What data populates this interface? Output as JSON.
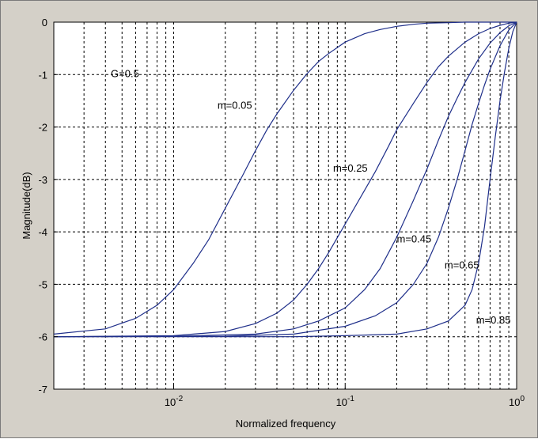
{
  "chart_data": {
    "type": "line",
    "xscale": "log",
    "xlim": [
      0.002,
      1
    ],
    "ylim": [
      -7,
      0
    ],
    "grid": true,
    "xlabel": "Normalized frequency",
    "ylabel": "Magnitude(dB)",
    "x_ticks": [
      {
        "base": "10",
        "exp": "-2",
        "value": 0.01
      },
      {
        "base": "10",
        "exp": "-1",
        "value": 0.1
      },
      {
        "base": "10",
        "exp": "0",
        "value": 1
      }
    ],
    "y_ticks": [
      0,
      -1,
      -2,
      -3,
      -4,
      -5,
      -6,
      -7
    ],
    "annotations": [
      {
        "text": "G=0.5",
        "x": 0.0043,
        "y": -1.05
      },
      {
        "text": "m=0.05",
        "x": 0.018,
        "y": -1.65
      },
      {
        "text": "m=0.25",
        "x": 0.085,
        "y": -2.85
      },
      {
        "text": "m=0.45",
        "x": 0.2,
        "y": -4.2
      },
      {
        "text": "m=0.65",
        "x": 0.38,
        "y": -4.7
      },
      {
        "text": "m=0.85",
        "x": 0.58,
        "y": -5.75
      }
    ],
    "series": [
      {
        "x": [
          0.002,
          0.004,
          0.006,
          0.008,
          0.01,
          0.013,
          0.016,
          0.02,
          0.025,
          0.03,
          0.035,
          0.04,
          0.05,
          0.06,
          0.07,
          0.08,
          0.1,
          0.13,
          0.16,
          0.2,
          0.25,
          0.3,
          0.4,
          0.5,
          0.7,
          1.0
        ],
        "y": [
          -5.95,
          -5.85,
          -5.65,
          -5.4,
          -5.1,
          -4.6,
          -4.15,
          -3.55,
          -2.95,
          -2.45,
          -2.05,
          -1.75,
          -1.3,
          -0.98,
          -0.75,
          -0.6,
          -0.38,
          -0.22,
          -0.14,
          -0.08,
          -0.04,
          -0.02,
          -0.01,
          0,
          0,
          0
        ]
      },
      {
        "x": [
          0.002,
          0.01,
          0.02,
          0.03,
          0.04,
          0.05,
          0.06,
          0.07,
          0.08,
          0.1,
          0.12,
          0.15,
          0.18,
          0.2,
          0.25,
          0.3,
          0.35,
          0.4,
          0.5,
          0.6,
          0.7,
          0.8,
          0.9,
          1.0
        ],
        "y": [
          -6.0,
          -5.98,
          -5.9,
          -5.75,
          -5.55,
          -5.3,
          -5.0,
          -4.7,
          -4.4,
          -3.85,
          -3.4,
          -2.85,
          -2.35,
          -2.05,
          -1.55,
          -1.15,
          -0.85,
          -0.65,
          -0.38,
          -0.22,
          -0.12,
          -0.06,
          -0.02,
          0
        ]
      },
      {
        "x": [
          0.002,
          0.01,
          0.03,
          0.05,
          0.07,
          0.1,
          0.13,
          0.16,
          0.2,
          0.25,
          0.3,
          0.35,
          0.4,
          0.45,
          0.5,
          0.6,
          0.7,
          0.8,
          0.9,
          1.0
        ],
        "y": [
          -6.0,
          -5.99,
          -5.95,
          -5.85,
          -5.7,
          -5.45,
          -5.1,
          -4.7,
          -4.1,
          -3.4,
          -2.8,
          -2.25,
          -1.8,
          -1.45,
          -1.15,
          -0.7,
          -0.4,
          -0.2,
          -0.07,
          0
        ]
      },
      {
        "x": [
          0.002,
          0.02,
          0.05,
          0.1,
          0.15,
          0.2,
          0.25,
          0.3,
          0.35,
          0.4,
          0.45,
          0.5,
          0.55,
          0.6,
          0.65,
          0.7,
          0.8,
          0.9,
          1.0
        ],
        "y": [
          -6.0,
          -5.99,
          -5.95,
          -5.8,
          -5.6,
          -5.35,
          -5.0,
          -4.6,
          -4.1,
          -3.55,
          -3.0,
          -2.45,
          -1.95,
          -1.55,
          -1.2,
          -0.9,
          -0.45,
          -0.15,
          0
        ]
      },
      {
        "x": [
          0.002,
          0.05,
          0.1,
          0.2,
          0.3,
          0.4,
          0.5,
          0.55,
          0.6,
          0.65,
          0.7,
          0.75,
          0.8,
          0.85,
          0.9,
          0.95,
          1.0
        ],
        "y": [
          -6.0,
          -6.0,
          -5.98,
          -5.95,
          -5.85,
          -5.7,
          -5.4,
          -5.1,
          -4.6,
          -3.9,
          -3.0,
          -2.2,
          -1.5,
          -0.95,
          -0.5,
          -0.18,
          0
        ]
      }
    ]
  }
}
